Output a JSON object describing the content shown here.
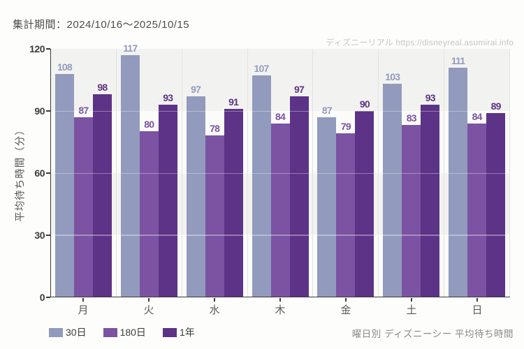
{
  "header": {
    "period_label": "集計期間：2024/10/16～2025/10/15"
  },
  "watermark": {
    "text": "ディズニーリアル https://disneyreal.asumirai.info"
  },
  "chart_data": {
    "type": "bar",
    "title": "曜日別 ディズニーシー 平均待ち時間",
    "ylabel": "平均待ち時間（分）",
    "xlabel": "",
    "ylim": [
      0,
      120
    ],
    "yticks": [
      0,
      30,
      60,
      90,
      120
    ],
    "grid_yticks": [
      30,
      60,
      90
    ],
    "categories": [
      "月",
      "火",
      "水",
      "木",
      "金",
      "土",
      "日"
    ],
    "series": [
      {
        "name": "30日",
        "color": "#929ABD",
        "values": [
          108,
          117,
          97,
          107,
          87,
          103,
          111
        ]
      },
      {
        "name": "180日",
        "color": "#7B53A2",
        "values": [
          87,
          80,
          78,
          84,
          79,
          83,
          84
        ]
      },
      {
        "name": "1年",
        "color": "#5C3387",
        "values": [
          98,
          93,
          91,
          97,
          90,
          93,
          89
        ]
      }
    ],
    "legend_position": "bottom-left",
    "band_colors": [
      "#f2f3f0",
      "#fbfcf9"
    ],
    "axis_color": "#3a3a3a"
  }
}
